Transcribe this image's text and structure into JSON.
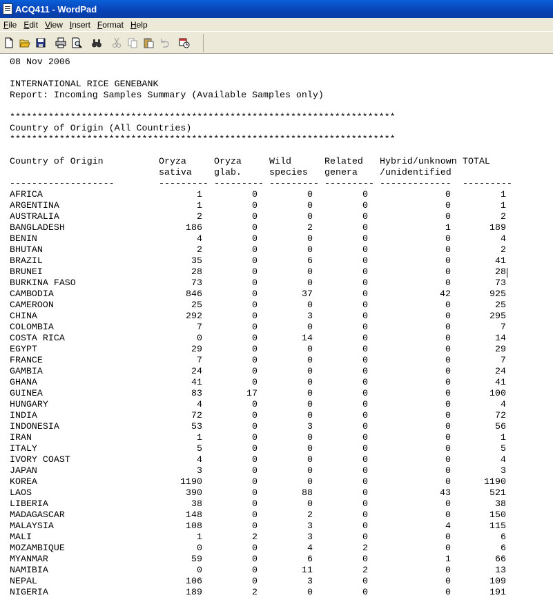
{
  "window": {
    "title": "ACQ411 - WordPad"
  },
  "menu": [
    "File",
    "Edit",
    "View",
    "Insert",
    "Format",
    "Help"
  ],
  "toolbar": [
    {
      "icon": "new-document-icon"
    },
    {
      "icon": "open-folder-icon"
    },
    {
      "icon": "save-disk-icon"
    },
    {
      "icon": "print-icon"
    },
    {
      "icon": "print-preview-icon"
    },
    {
      "icon": "find-binoculars-icon"
    },
    {
      "icon": "cut-scissors-icon"
    },
    {
      "icon": "copy-icon"
    },
    {
      "icon": "paste-clipboard-icon"
    },
    {
      "icon": "undo-icon"
    },
    {
      "icon": "date-time-icon"
    }
  ],
  "document": {
    "date": "08 Nov 2006",
    "org": "INTERNATIONAL RICE GENEBANK",
    "report": "Report: Incoming Samples Summary (Available Samples only)",
    "stars": "**********************************************************************",
    "section": "Country of Origin (All Countries)",
    "headers": [
      {
        "line1": "Country of Origin",
        "line2": "",
        "dash": "-------------------"
      },
      {
        "line1": "Oryza",
        "line2": "sativa",
        "dash": "---------"
      },
      {
        "line1": "Oryza",
        "line2": "glab.",
        "dash": "---------"
      },
      {
        "line1": "Wild",
        "line2": "species",
        "dash": "---------"
      },
      {
        "line1": "Related",
        "line2": "genera",
        "dash": "---------"
      },
      {
        "line1": "Hybrid/unknown",
        "line2": "/unidentified",
        "dash": "-------------"
      },
      {
        "line1": "TOTAL",
        "line2": "",
        "dash": "---------"
      }
    ],
    "rows": [
      [
        "AFRICA",
        "1",
        "0",
        "0",
        "0",
        "0",
        "1"
      ],
      [
        "ARGENTINA",
        "1",
        "0",
        "0",
        "0",
        "0",
        "1"
      ],
      [
        "AUSTRALIA",
        "2",
        "0",
        "0",
        "0",
        "0",
        "2"
      ],
      [
        "BANGLADESH",
        "186",
        "0",
        "2",
        "0",
        "1",
        "189"
      ],
      [
        "BENIN",
        "4",
        "0",
        "0",
        "0",
        "0",
        "4"
      ],
      [
        "BHUTAN",
        "2",
        "0",
        "0",
        "0",
        "0",
        "2"
      ],
      [
        "BRAZIL",
        "35",
        "0",
        "6",
        "0",
        "0",
        "41"
      ],
      [
        "BRUNEI",
        "28",
        "0",
        "0",
        "0",
        "0",
        "28"
      ],
      [
        "BURKINA FASO",
        "73",
        "0",
        "0",
        "0",
        "0",
        "73"
      ],
      [
        "CAMBODIA",
        "846",
        "0",
        "37",
        "0",
        "42",
        "925"
      ],
      [
        "CAMEROON",
        "25",
        "0",
        "0",
        "0",
        "0",
        "25"
      ],
      [
        "CHINA",
        "292",
        "0",
        "3",
        "0",
        "0",
        "295"
      ],
      [
        "COLOMBIA",
        "7",
        "0",
        "0",
        "0",
        "0",
        "7"
      ],
      [
        "COSTA RICA",
        "0",
        "0",
        "14",
        "0",
        "0",
        "14"
      ],
      [
        "EGYPT",
        "29",
        "0",
        "0",
        "0",
        "0",
        "29"
      ],
      [
        "FRANCE",
        "7",
        "0",
        "0",
        "0",
        "0",
        "7"
      ],
      [
        "GAMBIA",
        "24",
        "0",
        "0",
        "0",
        "0",
        "24"
      ],
      [
        "GHANA",
        "41",
        "0",
        "0",
        "0",
        "0",
        "41"
      ],
      [
        "GUINEA",
        "83",
        "17",
        "0",
        "0",
        "0",
        "100"
      ],
      [
        "HUNGARY",
        "4",
        "0",
        "0",
        "0",
        "0",
        "4"
      ],
      [
        "INDIA",
        "72",
        "0",
        "0",
        "0",
        "0",
        "72"
      ],
      [
        "INDONESIA",
        "53",
        "0",
        "3",
        "0",
        "0",
        "56"
      ],
      [
        "IRAN",
        "1",
        "0",
        "0",
        "0",
        "0",
        "1"
      ],
      [
        "ITALY",
        "5",
        "0",
        "0",
        "0",
        "0",
        "5"
      ],
      [
        "IVORY COAST",
        "4",
        "0",
        "0",
        "0",
        "0",
        "4"
      ],
      [
        "JAPAN",
        "3",
        "0",
        "0",
        "0",
        "0",
        "3"
      ],
      [
        "KOREA",
        "1190",
        "0",
        "0",
        "0",
        "0",
        "1190"
      ],
      [
        "LAOS",
        "390",
        "0",
        "88",
        "0",
        "43",
        "521"
      ],
      [
        "LIBERIA",
        "38",
        "0",
        "0",
        "0",
        "0",
        "38"
      ],
      [
        "MADAGASCAR",
        "148",
        "0",
        "2",
        "0",
        "0",
        "150"
      ],
      [
        "MALAYSIA",
        "108",
        "0",
        "3",
        "0",
        "4",
        "115"
      ],
      [
        "MALI",
        "1",
        "2",
        "3",
        "0",
        "0",
        "6"
      ],
      [
        "MOZAMBIQUE",
        "0",
        "0",
        "4",
        "2",
        "0",
        "6"
      ],
      [
        "MYANMAR",
        "59",
        "0",
        "6",
        "0",
        "1",
        "66"
      ],
      [
        "NAMIBIA",
        "0",
        "0",
        "11",
        "2",
        "0",
        "13"
      ],
      [
        "NEPAL",
        "106",
        "0",
        "3",
        "0",
        "0",
        "109"
      ],
      [
        "NIGERIA",
        "189",
        "2",
        "0",
        "0",
        "0",
        "191"
      ]
    ]
  }
}
